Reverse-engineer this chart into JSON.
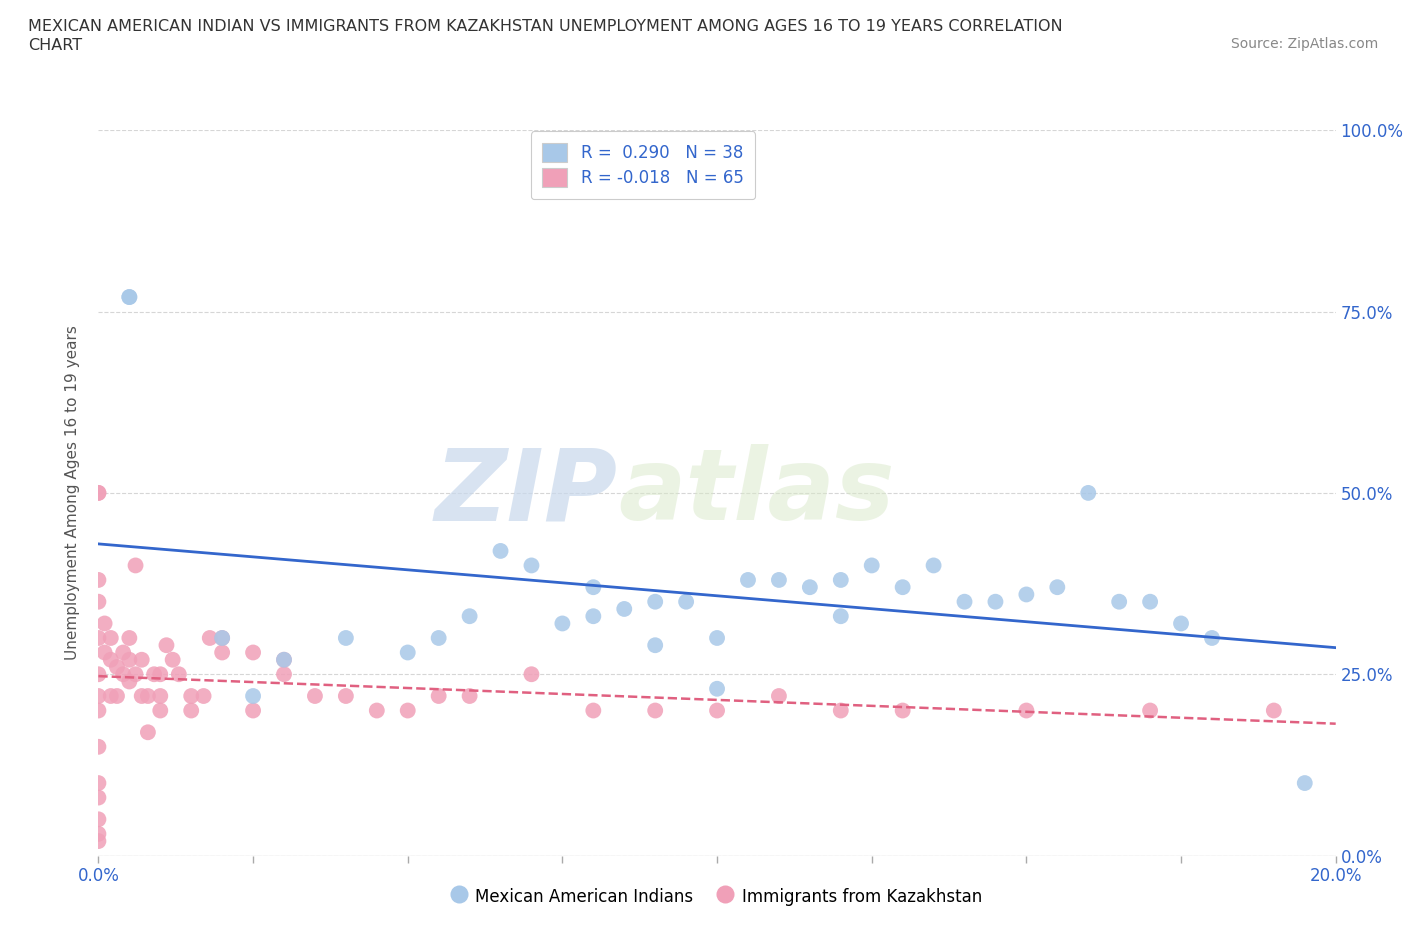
{
  "title": "MEXICAN AMERICAN INDIAN VS IMMIGRANTS FROM KAZAKHSTAN UNEMPLOYMENT AMONG AGES 16 TO 19 YEARS CORRELATION\nCHART",
  "source": "Source: ZipAtlas.com",
  "ylabel": "Unemployment Among Ages 16 to 19 years",
  "xlim": [
    0.0,
    0.2
  ],
  "ylim": [
    0.0,
    1.0
  ],
  "xticks": [
    0.0,
    0.025,
    0.05,
    0.075,
    0.1,
    0.125,
    0.15,
    0.175,
    0.2
  ],
  "yticks": [
    0.0,
    0.25,
    0.5,
    0.75,
    1.0
  ],
  "ytick_labels": [
    "0.0%",
    "25.0%",
    "50.0%",
    "75.0%",
    "100.0%"
  ],
  "blue_r": 0.29,
  "blue_n": 38,
  "pink_r": -0.018,
  "pink_n": 65,
  "blue_color": "#a8c8e8",
  "pink_color": "#f0a0b8",
  "blue_line_color": "#3366cc",
  "pink_line_color": "#e06080",
  "blue_scatter_x": [
    0.005,
    0.005,
    0.02,
    0.025,
    0.03,
    0.04,
    0.05,
    0.055,
    0.06,
    0.065,
    0.07,
    0.075,
    0.08,
    0.08,
    0.085,
    0.09,
    0.09,
    0.095,
    0.1,
    0.1,
    0.105,
    0.11,
    0.115,
    0.12,
    0.12,
    0.125,
    0.13,
    0.135,
    0.14,
    0.145,
    0.15,
    0.155,
    0.16,
    0.165,
    0.17,
    0.175,
    0.18,
    0.195
  ],
  "blue_scatter_y": [
    0.77,
    0.77,
    0.3,
    0.22,
    0.27,
    0.3,
    0.28,
    0.3,
    0.33,
    0.42,
    0.4,
    0.32,
    0.33,
    0.37,
    0.34,
    0.29,
    0.35,
    0.35,
    0.3,
    0.23,
    0.38,
    0.38,
    0.37,
    0.33,
    0.38,
    0.4,
    0.37,
    0.4,
    0.35,
    0.35,
    0.36,
    0.37,
    0.5,
    0.35,
    0.35,
    0.32,
    0.3,
    0.1
  ],
  "pink_scatter_x": [
    0.0,
    0.0,
    0.0,
    0.0,
    0.0,
    0.0,
    0.0,
    0.0,
    0.0,
    0.0,
    0.001,
    0.001,
    0.002,
    0.002,
    0.002,
    0.003,
    0.003,
    0.004,
    0.004,
    0.005,
    0.005,
    0.005,
    0.006,
    0.006,
    0.007,
    0.007,
    0.008,
    0.008,
    0.009,
    0.01,
    0.01,
    0.01,
    0.011,
    0.012,
    0.013,
    0.015,
    0.015,
    0.017,
    0.018,
    0.02,
    0.02,
    0.025,
    0.025,
    0.03,
    0.03,
    0.035,
    0.04,
    0.045,
    0.05,
    0.055,
    0.06,
    0.07,
    0.08,
    0.09,
    0.1,
    0.11,
    0.12,
    0.13,
    0.15,
    0.17,
    0.19,
    0.0,
    0.0,
    0.0,
    0.0
  ],
  "pink_scatter_y": [
    0.5,
    0.5,
    0.38,
    0.35,
    0.3,
    0.25,
    0.22,
    0.2,
    0.15,
    0.1,
    0.28,
    0.32,
    0.27,
    0.3,
    0.22,
    0.26,
    0.22,
    0.28,
    0.25,
    0.24,
    0.27,
    0.3,
    0.25,
    0.4,
    0.22,
    0.27,
    0.17,
    0.22,
    0.25,
    0.25,
    0.22,
    0.2,
    0.29,
    0.27,
    0.25,
    0.2,
    0.22,
    0.22,
    0.3,
    0.3,
    0.28,
    0.2,
    0.28,
    0.27,
    0.25,
    0.22,
    0.22,
    0.2,
    0.2,
    0.22,
    0.22,
    0.25,
    0.2,
    0.2,
    0.2,
    0.22,
    0.2,
    0.2,
    0.2,
    0.2,
    0.2,
    0.05,
    0.03,
    0.08,
    0.02
  ],
  "watermark_zip": "ZIP",
  "watermark_atlas": "atlas",
  "background_color": "#ffffff",
  "grid_color": "#cccccc"
}
